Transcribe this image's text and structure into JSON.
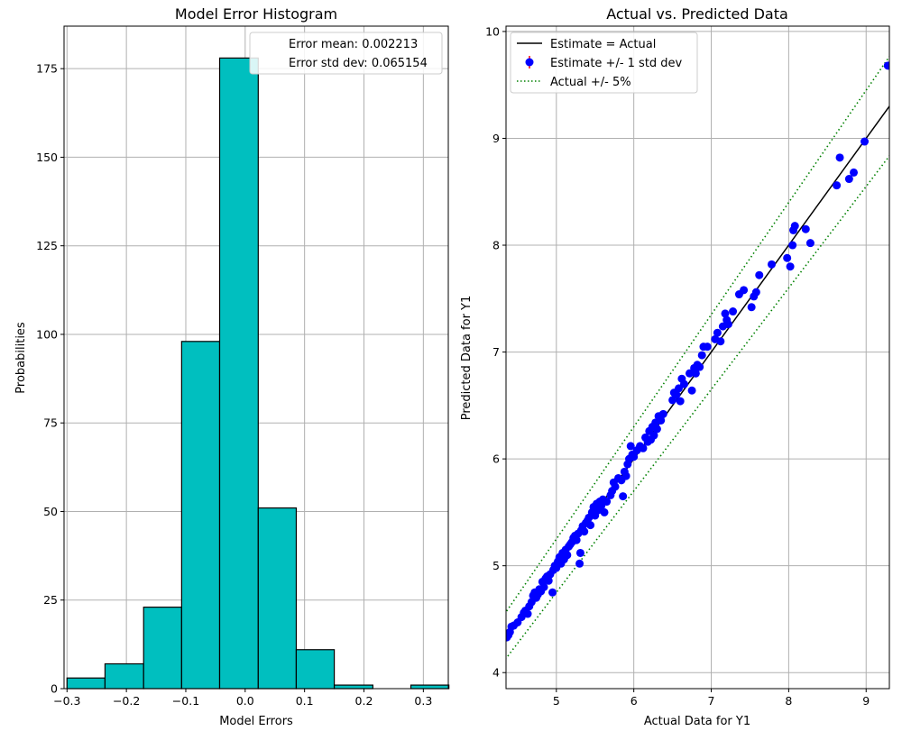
{
  "chart_data": [
    {
      "type": "bar",
      "title": "Model Error Histogram",
      "xlabel": "Model Errors",
      "ylabel": "Probabilities",
      "xlim": [
        -0.305,
        0.342
      ],
      "ylim": [
        0,
        187
      ],
      "grid": true,
      "bar_color": "#00bfbf",
      "bar_edge_color": "#000000",
      "bins": [
        {
          "x0": -0.3,
          "x1": -0.236,
          "value": 3
        },
        {
          "x0": -0.236,
          "x1": -0.171,
          "value": 7
        },
        {
          "x0": -0.171,
          "x1": -0.107,
          "value": 23
        },
        {
          "x0": -0.107,
          "x1": -0.043,
          "value": 98
        },
        {
          "x0": -0.043,
          "x1": 0.022,
          "value": 178
        },
        {
          "x0": 0.022,
          "x1": 0.086,
          "value": 51
        },
        {
          "x0": 0.086,
          "x1": 0.15,
          "value": 11
        },
        {
          "x0": 0.15,
          "x1": 0.215,
          "value": 1
        },
        {
          "x0": 0.215,
          "x1": 0.279,
          "value": 0
        },
        {
          "x0": 0.279,
          "x1": 0.343,
          "value": 1
        }
      ],
      "xticks": [
        {
          "value": -0.3,
          "label": "−0.3"
        },
        {
          "value": -0.2,
          "label": "−0.2"
        },
        {
          "value": -0.1,
          "label": "−0.1"
        },
        {
          "value": 0.0,
          "label": "0.0"
        },
        {
          "value": 0.1,
          "label": "0.1"
        },
        {
          "value": 0.2,
          "label": "0.2"
        },
        {
          "value": 0.3,
          "label": "0.3"
        }
      ],
      "yticks": [
        {
          "value": 0,
          "label": "0"
        },
        {
          "value": 25,
          "label": "25"
        },
        {
          "value": 50,
          "label": "50"
        },
        {
          "value": 75,
          "label": "75"
        },
        {
          "value": 100,
          "label": "100"
        },
        {
          "value": 125,
          "label": "125"
        },
        {
          "value": 150,
          "label": "150"
        },
        {
          "value": 175,
          "label": "175"
        }
      ],
      "legend_placement": "upper right",
      "legend": [
        "Error mean: 0.002213",
        "Error std dev: 0.065154"
      ]
    },
    {
      "type": "scatter",
      "title": "Actual vs. Predicted Data",
      "xlabel": "Actual Data for Y1",
      "ylabel": "Predicted Data for Y1",
      "xlim": [
        4.35,
        9.3
      ],
      "ylim": [
        3.85,
        10.05
      ],
      "grid": true,
      "xticks": [
        {
          "value": 5,
          "label": "5"
        },
        {
          "value": 6,
          "label": "6"
        },
        {
          "value": 7,
          "label": "7"
        },
        {
          "value": 8,
          "label": "8"
        },
        {
          "value": 9,
          "label": "9"
        }
      ],
      "yticks": [
        {
          "value": 4,
          "label": "4"
        },
        {
          "value": 5,
          "label": "5"
        },
        {
          "value": 6,
          "label": "6"
        },
        {
          "value": 7,
          "label": "7"
        },
        {
          "value": 8,
          "label": "8"
        },
        {
          "value": 9,
          "label": "9"
        },
        {
          "value": 10,
          "label": "10"
        }
      ],
      "legend_placement": "upper left",
      "series": [
        {
          "name": "Estimate = Actual",
          "kind": "line",
          "color": "#000000",
          "slope": 1.0,
          "style": "solid"
        },
        {
          "name": "Estimate +/- 1 std dev",
          "kind": "scatter",
          "color": "#0000ff"
        },
        {
          "name": "Actual +/- 5%",
          "kind": "band",
          "color": "#008000",
          "factors": [
            1.05,
            0.95
          ],
          "style": "dotted"
        }
      ],
      "points": [
        [
          4.36,
          4.33
        ],
        [
          4.38,
          4.35
        ],
        [
          4.4,
          4.38
        ],
        [
          4.42,
          4.43
        ],
        [
          4.45,
          4.44
        ],
        [
          4.5,
          4.47
        ],
        [
          4.55,
          4.52
        ],
        [
          4.58,
          4.56
        ],
        [
          4.6,
          4.58
        ],
        [
          4.63,
          4.55
        ],
        [
          4.65,
          4.62
        ],
        [
          4.68,
          4.66
        ],
        [
          4.7,
          4.72
        ],
        [
          4.72,
          4.75
        ],
        [
          4.74,
          4.7
        ],
        [
          4.76,
          4.73
        ],
        [
          4.78,
          4.78
        ],
        [
          4.8,
          4.76
        ],
        [
          4.82,
          4.85
        ],
        [
          4.84,
          4.8
        ],
        [
          4.86,
          4.88
        ],
        [
          4.88,
          4.9
        ],
        [
          4.9,
          4.86
        ],
        [
          4.92,
          4.92
        ],
        [
          4.95,
          4.75
        ],
        [
          4.96,
          4.96
        ],
        [
          4.98,
          5.0
        ],
        [
          5.0,
          4.98
        ],
        [
          5.02,
          5.04
        ],
        [
          5.04,
          5.08
        ],
        [
          5.06,
          5.02
        ],
        [
          5.08,
          5.12
        ],
        [
          5.1,
          5.06
        ],
        [
          5.12,
          5.15
        ],
        [
          5.14,
          5.1
        ],
        [
          5.16,
          5.18
        ],
        [
          5.18,
          5.2
        ],
        [
          5.2,
          5.22
        ],
        [
          5.22,
          5.26
        ],
        [
          5.24,
          5.28
        ],
        [
          5.26,
          5.24
        ],
        [
          5.28,
          5.3
        ],
        [
          5.3,
          5.02
        ],
        [
          5.31,
          5.12
        ],
        [
          5.32,
          5.33
        ],
        [
          5.34,
          5.37
        ],
        [
          5.36,
          5.32
        ],
        [
          5.38,
          5.4
        ],
        [
          5.4,
          5.42
        ],
        [
          5.42,
          5.45
        ],
        [
          5.44,
          5.38
        ],
        [
          5.46,
          5.5
        ],
        [
          5.48,
          5.55
        ],
        [
          5.5,
          5.47
        ],
        [
          5.52,
          5.58
        ],
        [
          5.54,
          5.52
        ],
        [
          5.56,
          5.6
        ],
        [
          5.58,
          5.56
        ],
        [
          5.6,
          5.62
        ],
        [
          5.62,
          5.5
        ],
        [
          5.65,
          5.6
        ],
        [
          5.7,
          5.66
        ],
        [
          5.72,
          5.7
        ],
        [
          5.74,
          5.78
        ],
        [
          5.76,
          5.74
        ],
        [
          5.8,
          5.82
        ],
        [
          5.84,
          5.8
        ],
        [
          5.86,
          5.65
        ],
        [
          5.88,
          5.88
        ],
        [
          5.9,
          5.84
        ],
        [
          5.92,
          5.95
        ],
        [
          5.94,
          6.0
        ],
        [
          5.96,
          6.12
        ],
        [
          5.98,
          6.04
        ],
        [
          6.0,
          6.02
        ],
        [
          6.04,
          6.08
        ],
        [
          6.08,
          6.12
        ],
        [
          6.12,
          6.1
        ],
        [
          6.15,
          6.2
        ],
        [
          6.18,
          6.16
        ],
        [
          6.2,
          6.26
        ],
        [
          6.22,
          6.18
        ],
        [
          6.24,
          6.3
        ],
        [
          6.26,
          6.22
        ],
        [
          6.28,
          6.34
        ],
        [
          6.3,
          6.28
        ],
        [
          6.32,
          6.4
        ],
        [
          6.35,
          6.36
        ],
        [
          6.38,
          6.42
        ],
        [
          6.5,
          6.55
        ],
        [
          6.52,
          6.62
        ],
        [
          6.55,
          6.6
        ],
        [
          6.58,
          6.66
        ],
        [
          6.6,
          6.54
        ],
        [
          6.62,
          6.75
        ],
        [
          6.65,
          6.7
        ],
        [
          6.72,
          6.8
        ],
        [
          6.75,
          6.64
        ],
        [
          6.78,
          6.85
        ],
        [
          6.8,
          6.8
        ],
        [
          6.82,
          6.88
        ],
        [
          6.85,
          6.86
        ],
        [
          6.88,
          6.97
        ],
        [
          6.9,
          7.05
        ],
        [
          6.95,
          7.05
        ],
        [
          7.05,
          7.12
        ],
        [
          7.08,
          7.18
        ],
        [
          7.12,
          7.1
        ],
        [
          7.15,
          7.24
        ],
        [
          7.18,
          7.36
        ],
        [
          7.2,
          7.3
        ],
        [
          7.22,
          7.26
        ],
        [
          7.28,
          7.38
        ],
        [
          7.36,
          7.54
        ],
        [
          7.42,
          7.58
        ],
        [
          7.52,
          7.42
        ],
        [
          7.55,
          7.52
        ],
        [
          7.58,
          7.56
        ],
        [
          7.62,
          7.72
        ],
        [
          7.78,
          7.82
        ],
        [
          7.98,
          7.88
        ],
        [
          8.02,
          7.8
        ],
        [
          8.05,
          8.0
        ],
        [
          8.06,
          8.14
        ],
        [
          8.08,
          8.18
        ],
        [
          8.22,
          8.15
        ],
        [
          8.28,
          8.02
        ],
        [
          8.62,
          8.56
        ],
        [
          8.66,
          8.82
        ],
        [
          8.78,
          8.62
        ],
        [
          8.84,
          8.68
        ],
        [
          8.98,
          8.97
        ],
        [
          9.28,
          9.68
        ]
      ]
    }
  ]
}
